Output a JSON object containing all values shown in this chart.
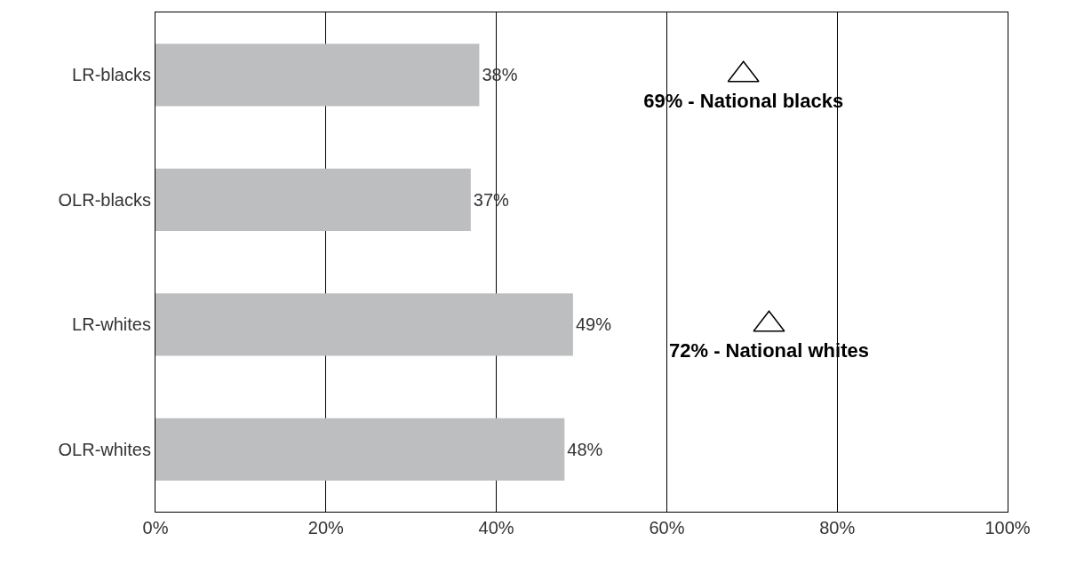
{
  "chart_data": {
    "type": "bar",
    "orientation": "horizontal",
    "categories": [
      "LR-blacks",
      "OLR-blacks",
      "LR-whites",
      "OLR-whites"
    ],
    "series": [
      {
        "color": "#bcbec0",
        "values": [
          38,
          37,
          49,
          48
        ],
        "value_labels": [
          "38%",
          "37%",
          "49%",
          "48%"
        ]
      },
      {
        "type": "scatter",
        "color": "#000000",
        "marker": "triangle",
        "values": [
          69,
          null,
          72,
          null
        ],
        "value_labels": [
          "69% - National blacks",
          null,
          "72% - National whites",
          null
        ]
      }
    ],
    "xlim": [
      0,
      100
    ],
    "xticks": [
      {
        "value": 0,
        "label": "0%"
      },
      {
        "value": 20,
        "label": "20%"
      },
      {
        "value": 40,
        "label": "40%"
      },
      {
        "value": 60,
        "label": "60%"
      },
      {
        "value": 80,
        "label": "80%"
      },
      {
        "value": 100,
        "label": "100%"
      }
    ],
    "grid": "x"
  }
}
